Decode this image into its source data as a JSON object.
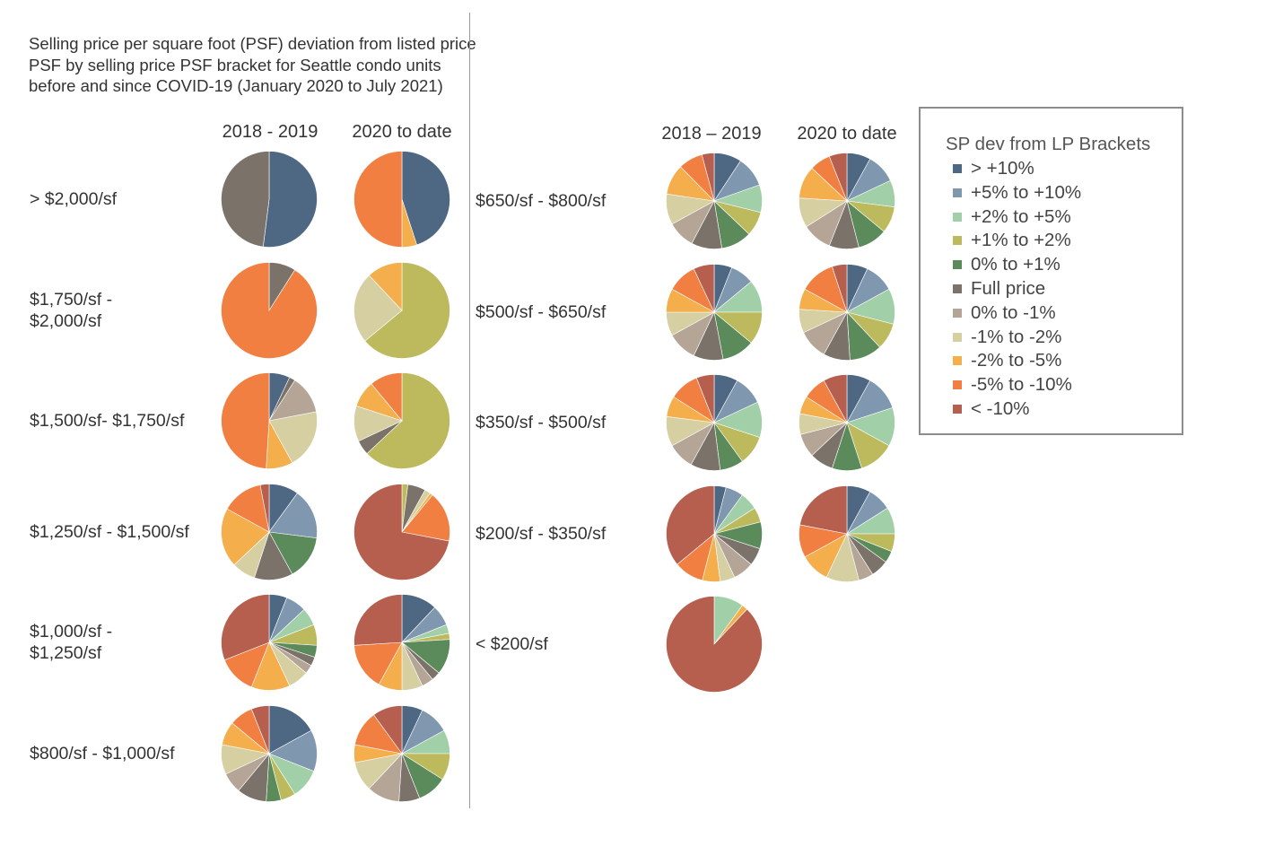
{
  "title": "Selling price per square foot (PSF) deviation from listed price PSF by selling price PSF bracket for Seattle condo units before and since COVID-19 (January 2020 to July 2021)",
  "columns": {
    "left_period_1": "2018 - 2019",
    "left_period_2": "2020 to date",
    "right_period_1": "2018 – 2019",
    "right_period_2": "2020 to date"
  },
  "legend": {
    "title": "SP dev from LP Brackets",
    "items": [
      {
        "label": "> +10%",
        "color": "#4e6883"
      },
      {
        "label": "+5% to +10%",
        "color": "#8097b0"
      },
      {
        "label": "+2% to +5%",
        "color": "#a1cfa7"
      },
      {
        "label": "+1% to +2%",
        "color": "#bdba5e"
      },
      {
        "label": "0% to +1%",
        "color": "#5b8a5b"
      },
      {
        "label": "Full price",
        "color": "#7b726a"
      },
      {
        "label": "0% to -1%",
        "color": "#b4a597"
      },
      {
        "label": "-1% to -2%",
        "color": "#d5cfa2"
      },
      {
        "label": "-2% to -5%",
        "color": "#f5ae4c"
      },
      {
        "label": "-5% to -10%",
        "color": "#f27f42"
      },
      {
        "label": "< -10%",
        "color": "#b65f4f"
      }
    ]
  },
  "chart_data": {
    "type": "pie",
    "title": "Selling price per square foot (PSF) deviation from listed price PSF by selling price PSF bracket for Seattle condo units before and since COVID-19 (January 2020 to July 2021)",
    "slice_categories": [
      "> +10%",
      "+5% to +10%",
      "+2% to +5%",
      "+1% to +2%",
      "0% to +1%",
      "Full price",
      "0% to -1%",
      "-1% to -2%",
      "-2% to -5%",
      "-5% to -10%",
      "< -10%"
    ],
    "periods": [
      "2018 - 2019",
      "2020 to date"
    ],
    "legend_position": "right",
    "brackets": [
      {
        "label": "> $2,000/sf",
        "side": "left",
        "row": 0,
        "values": [
          [
            52,
            0,
            0,
            0,
            0,
            48,
            0,
            0,
            0,
            0,
            0
          ],
          [
            45,
            0,
            0,
            0,
            0,
            0,
            0,
            0,
            5,
            50,
            0
          ]
        ]
      },
      {
        "label": "$1,750/sf - $2,000/sf",
        "side": "left",
        "row": 1,
        "values": [
          [
            0,
            0,
            0,
            0,
            0,
            9,
            0,
            0,
            0,
            91,
            0
          ],
          [
            0,
            0,
            0,
            64,
            0,
            0,
            0,
            24,
            12,
            0,
            0
          ]
        ]
      },
      {
        "label": "$1,500/sf- $1,750/sf",
        "side": "left",
        "row": 2,
        "values": [
          [
            7,
            0,
            0,
            0,
            0,
            2,
            13,
            20,
            9,
            49,
            0
          ],
          [
            0,
            0,
            0,
            63,
            0,
            5,
            0,
            12,
            9,
            11,
            0
          ]
        ]
      },
      {
        "label": "$1,250/sf - $1,500/sf",
        "side": "left",
        "row": 3,
        "values": [
          [
            10,
            17,
            0,
            0,
            15,
            13,
            0,
            8,
            20,
            14,
            3
          ],
          [
            0,
            0,
            0,
            2,
            0,
            6,
            0,
            2,
            1,
            17,
            72
          ]
        ]
      },
      {
        "label": "$1,000/sf - $1,250/sf",
        "side": "left",
        "row": 4,
        "values": [
          [
            6,
            7,
            6,
            7,
            4,
            3,
            3,
            7,
            13,
            13,
            31
          ],
          [
            12,
            7,
            3,
            2,
            12,
            3,
            4,
            7,
            8,
            16,
            26
          ]
        ]
      },
      {
        "label": "$800/sf - $1,000/sf",
        "side": "left",
        "row": 5,
        "values": [
          [
            17,
            14,
            10,
            5,
            5,
            10,
            7,
            10,
            8,
            8,
            6
          ],
          [
            7,
            10,
            8,
            9,
            10,
            7,
            11,
            10,
            6,
            12,
            10
          ]
        ]
      },
      {
        "label": "$650/sf - $800/sf",
        "side": "right",
        "row": 0,
        "values": [
          [
            9,
            10,
            9,
            8,
            10,
            10,
            9,
            10,
            10,
            8,
            4
          ],
          [
            8,
            10,
            9,
            9,
            10,
            10,
            10,
            10,
            11,
            7,
            6
          ]
        ]
      },
      {
        "label": "$500/sf - $650/sf",
        "side": "right",
        "row": 1,
        "values": [
          [
            6,
            8,
            11,
            11,
            11,
            10,
            10,
            8,
            8,
            10,
            7
          ],
          [
            7,
            10,
            12,
            9,
            11,
            9,
            10,
            8,
            7,
            12,
            5
          ]
        ]
      },
      {
        "label": "$350/sf - $500/sf",
        "side": "right",
        "row": 2,
        "values": [
          [
            8,
            10,
            12,
            10,
            8,
            10,
            9,
            10,
            7,
            10,
            6
          ],
          [
            8,
            12,
            13,
            12,
            10,
            8,
            8,
            7,
            6,
            8,
            8
          ]
        ]
      },
      {
        "label": "$200/sf - $350/sf",
        "side": "right",
        "row": 3,
        "values": [
          [
            4,
            6,
            6,
            5,
            9,
            6,
            7,
            5,
            6,
            10,
            36
          ],
          [
            8,
            8,
            9,
            6,
            4,
            6,
            5,
            11,
            10,
            11,
            22
          ]
        ]
      },
      {
        "label": "< $200/sf",
        "side": "right",
        "row": 4,
        "values": [
          [
            0,
            0,
            10,
            0,
            0,
            0,
            0,
            0,
            2,
            0,
            88
          ]
        ]
      }
    ]
  }
}
